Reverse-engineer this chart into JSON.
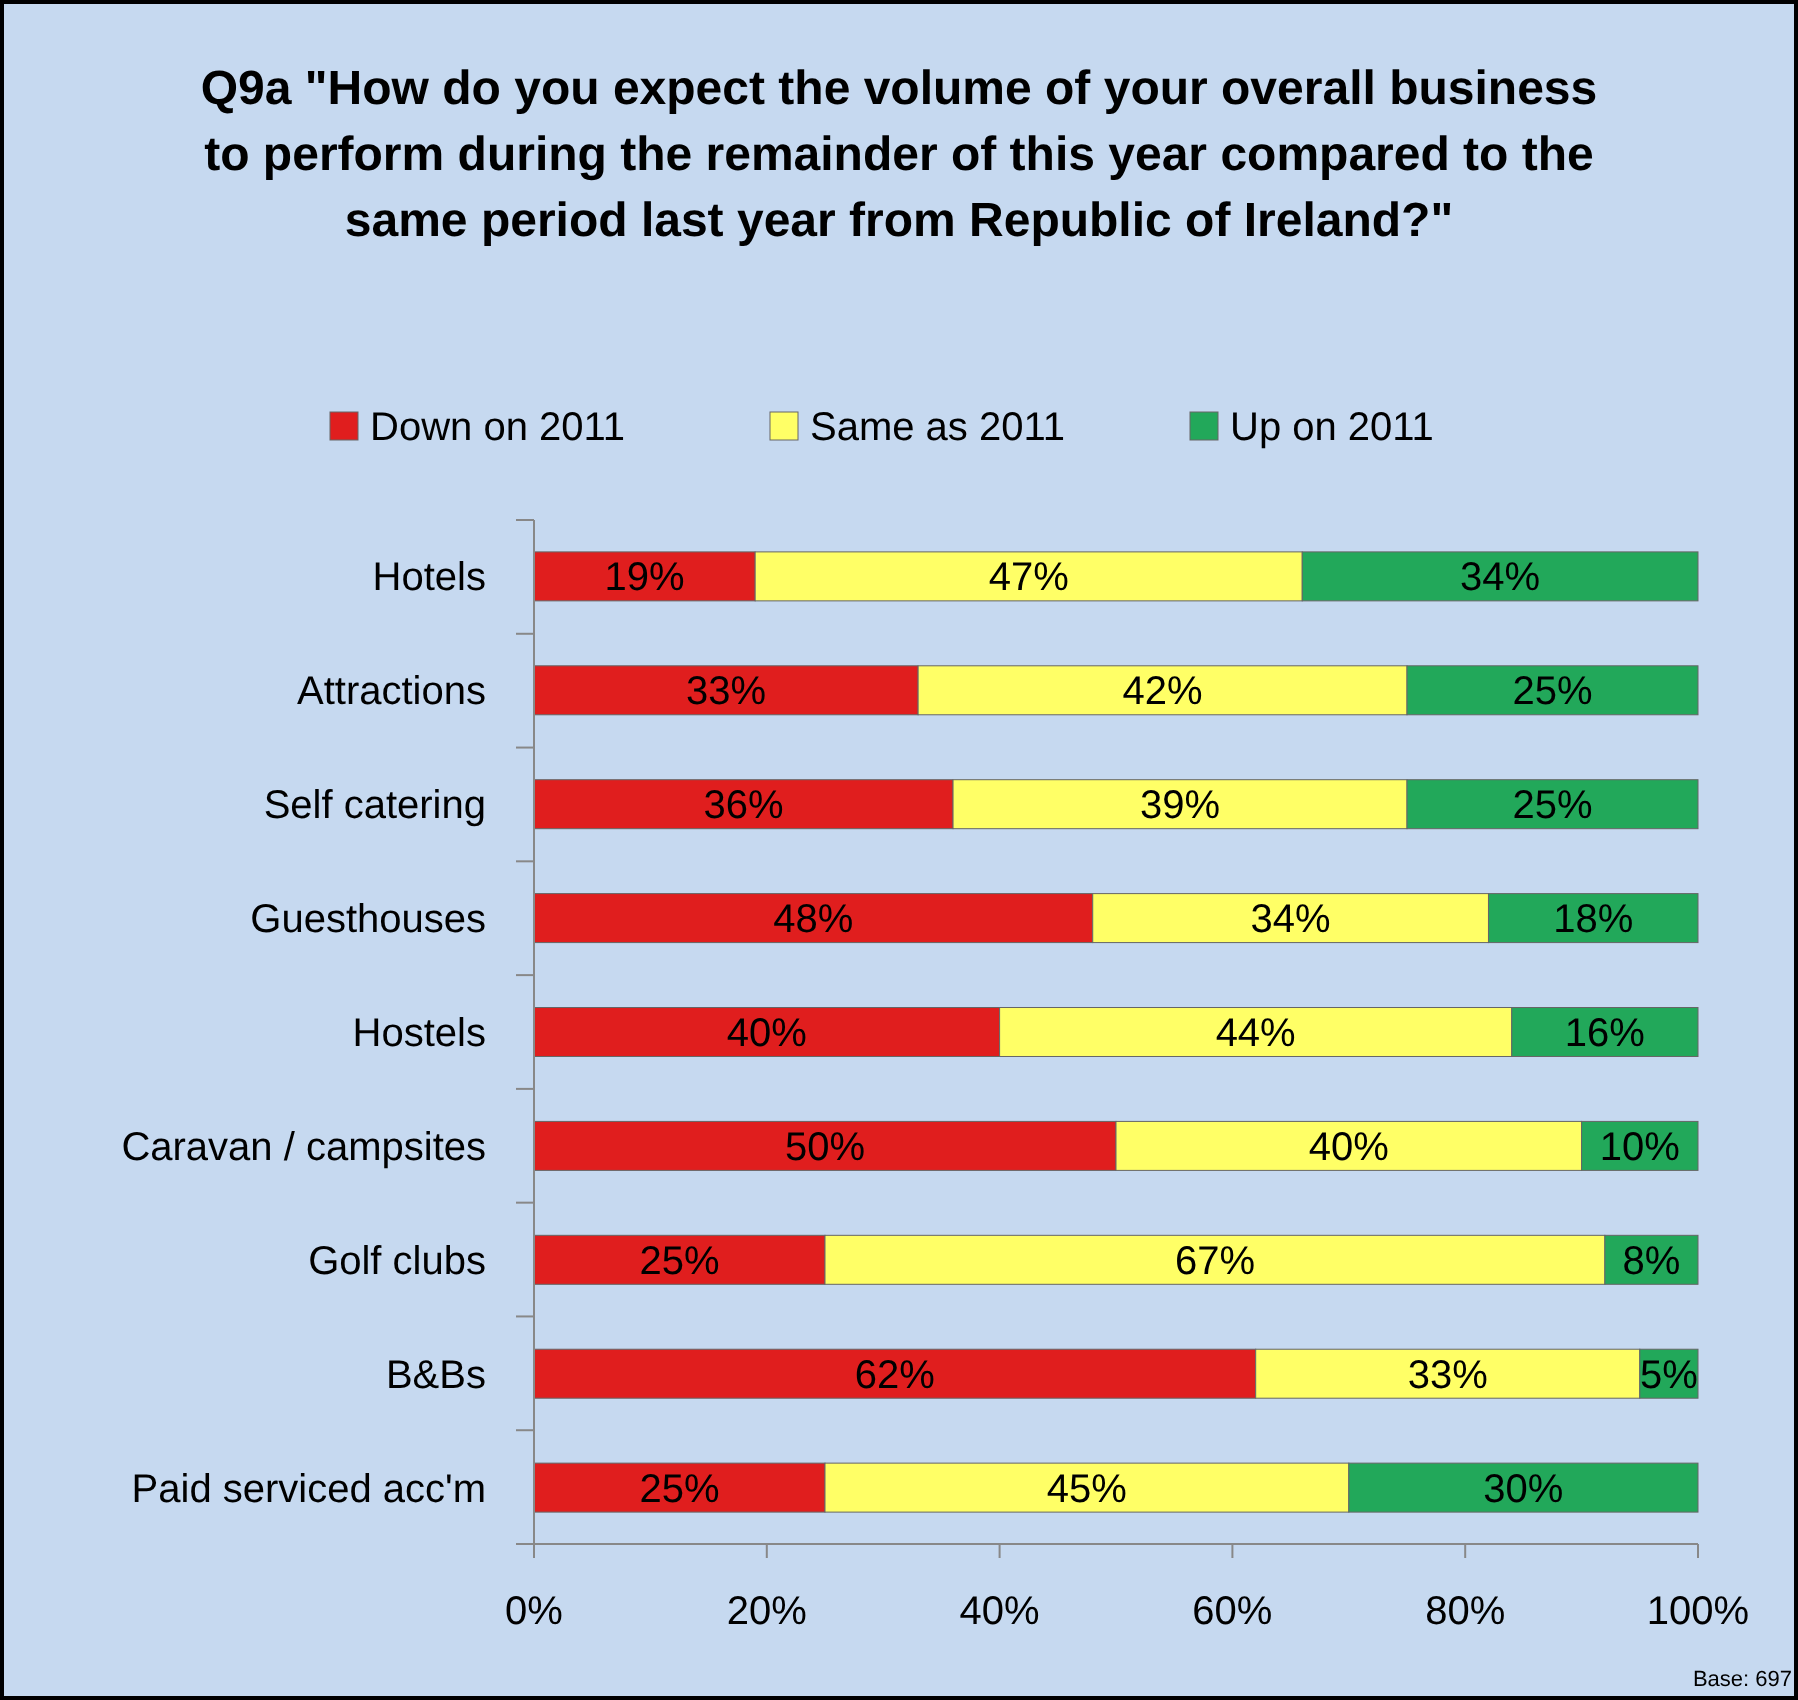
{
  "chart_data": {
    "type": "bar",
    "orientation": "horizontal",
    "stacked": true,
    "title": "Q9a \"How do you expect the volume of your overall business to perform during the remainder of this year compared to the same period last year from Republic of Ireland?\"",
    "categories": [
      "Hotels",
      "Attractions",
      "Self catering",
      "Guesthouses",
      "Hostels",
      "Caravan / campsites",
      "Golf clubs",
      "B&Bs",
      "Paid serviced acc'm"
    ],
    "series": [
      {
        "name": "Down on 2011",
        "color": "#e01e1e",
        "values": [
          19,
          33,
          36,
          48,
          40,
          50,
          25,
          62,
          25
        ],
        "value_labels": [
          "19%",
          "33%",
          "36%",
          "48%",
          "40%",
          "50%",
          "25%",
          "62%",
          "25%"
        ]
      },
      {
        "name": "Same as 2011",
        "color": "#ffff66",
        "values": [
          47,
          42,
          39,
          34,
          44,
          40,
          67,
          33,
          45
        ],
        "value_labels": [
          "47%",
          "42%",
          "39%",
          "34%",
          "44%",
          "40%",
          "67%",
          "33%",
          "45%"
        ]
      },
      {
        "name": "Up on 2011",
        "color": "#22a85a",
        "values": [
          34,
          25,
          25,
          18,
          16,
          10,
          8,
          5,
          30
        ],
        "value_labels": [
          "34%",
          "25%",
          "25%",
          "18%",
          "16%",
          "10%",
          "8%",
          "5%",
          "30%"
        ]
      }
    ],
    "xlim": [
      0,
      100
    ],
    "xticks": [
      {
        "value": 0,
        "label": "0%"
      },
      {
        "value": 20,
        "label": "20%"
      },
      {
        "value": 40,
        "label": "40%"
      },
      {
        "value": 60,
        "label": "60%"
      },
      {
        "value": 80,
        "label": "80%"
      },
      {
        "value": 100,
        "label": "100%"
      }
    ],
    "grid": false,
    "legend": "top",
    "annotations": [
      "Base: 697"
    ]
  }
}
